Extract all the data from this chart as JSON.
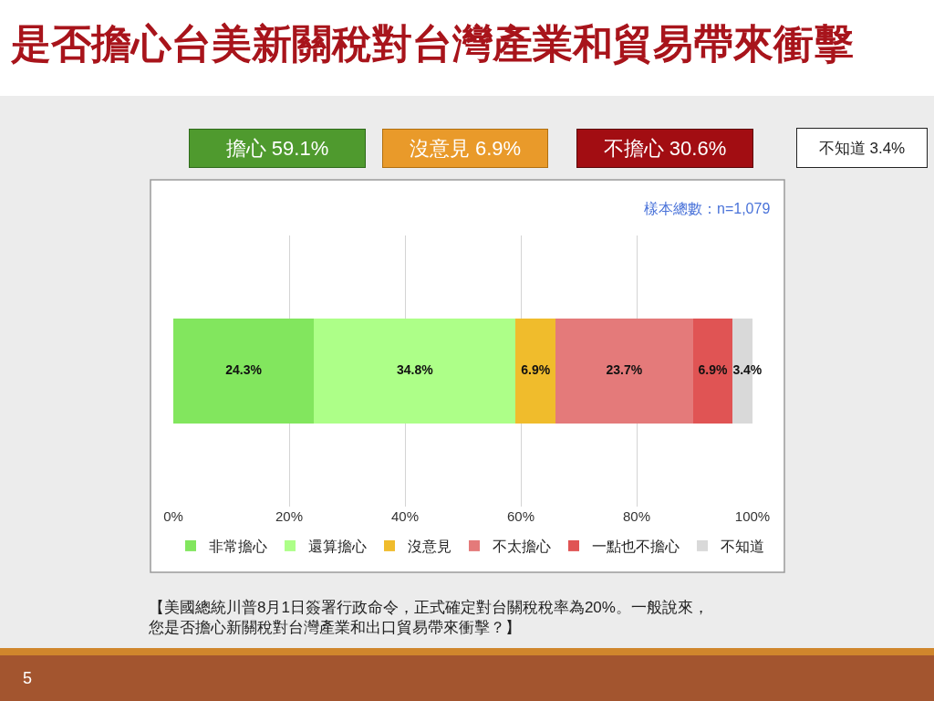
{
  "chart_data": {
    "type": "bar",
    "orientation": "horizontal",
    "stacked": true,
    "title": "是否擔心台美新關稅對台灣產業和貿易帶來衝擊",
    "categories": [
      null
    ],
    "series": [
      {
        "name": "非常擔心",
        "color": "#82e65e",
        "values": [
          24.3
        ],
        "value_labels": [
          "24.3%"
        ]
      },
      {
        "name": "還算擔心",
        "color": "#adff88",
        "values": [
          34.8
        ],
        "value_labels": [
          "34.8%"
        ]
      },
      {
        "name": "沒意見",
        "color": "#f0bc2c",
        "values": [
          6.9
        ],
        "value_labels": [
          "6.9%"
        ]
      },
      {
        "name": "不太擔心",
        "color": "#e47a7a",
        "values": [
          23.7
        ],
        "value_labels": [
          "23.7%"
        ]
      },
      {
        "name": "一點也不擔心",
        "color": "#e05454",
        "values": [
          6.9
        ],
        "value_labels": [
          "6.9%"
        ]
      },
      {
        "name": "不知道",
        "color": "#d9d9d9",
        "values": [
          3.4
        ],
        "value_labels": [
          "3.4%"
        ]
      }
    ],
    "xlim": [
      0,
      100
    ],
    "xticks": [
      {
        "value": 0,
        "label": "0%"
      },
      {
        "value": 20,
        "label": "20%"
      },
      {
        "value": 40,
        "label": "40%"
      },
      {
        "value": 60,
        "label": "60%"
      },
      {
        "value": 80,
        "label": "80%"
      },
      {
        "value": 100,
        "label": "100%"
      }
    ],
    "grid": "x",
    "legend": "bottom",
    "tick_labels": "x",
    "annotations": [
      "擔心 59.1%",
      "沒意見 6.9%",
      "不擔心 30.6%",
      "不知道 3.4%",
      "樣本總數：n=1,079",
      "【美國總統川普8月1日簽署行政命令，正式確定對台關稅稅率為20%。一般說來，您是否擔心新關稅對台灣產業和出口貿易帶來衝擊？】",
      "5"
    ]
  }
}
